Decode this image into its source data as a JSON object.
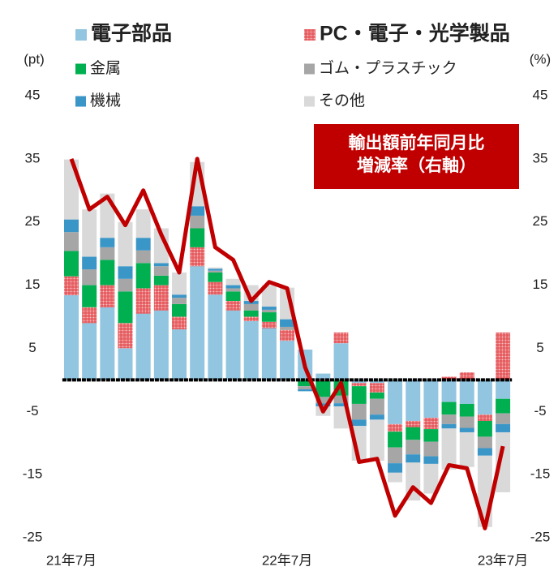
{
  "chart_data": {
    "type": "stacked_bar_line",
    "y_unit_label": "(pt)",
    "y2_unit_label": "(%)",
    "categories": [
      "21年7月",
      null,
      null,
      null,
      null,
      null,
      null,
      null,
      null,
      null,
      null,
      null,
      "22年7月",
      null,
      null,
      null,
      null,
      null,
      null,
      null,
      null,
      null,
      null,
      null,
      "23年7月"
    ],
    "ylim": [
      -25,
      45
    ],
    "yticks": [
      45,
      35,
      25,
      15,
      5,
      -5,
      -15,
      -25
    ],
    "y2lim": [
      -25,
      45
    ],
    "y2ticks": [
      45,
      35,
      25,
      15,
      5,
      -5,
      -15,
      -25
    ],
    "negative_tick_color": "#cc0000",
    "series": [
      {
        "name": "電子部品",
        "color": "#92c5e0",
        "values": [
          13.4,
          9,
          11.5,
          5,
          10.5,
          11,
          8,
          18,
          13.5,
          11,
          9.3,
          8.2,
          6.2,
          4.8,
          1,
          5.8,
          -0.5,
          -0.5,
          -7,
          -6.5,
          -6,
          -3.5,
          -3.8,
          -5.5,
          -3
        ]
      },
      {
        "name": "PC・電子・光学製品",
        "color": "#e03a3e",
        "pattern": "crosshatch",
        "values": [
          3,
          2.5,
          3.5,
          4,
          4,
          4,
          2,
          3,
          2,
          1.5,
          0.7,
          1,
          1.7,
          0,
          -0.2,
          1.7,
          -0.5,
          -1.5,
          -1.2,
          -1,
          -1.8,
          0.5,
          1.2,
          -1,
          7.5
        ]
      },
      {
        "name": "金属",
        "color": "#00b050",
        "values": [
          4,
          3.5,
          4,
          5,
          4,
          1.5,
          2,
          3,
          1.5,
          1.5,
          1,
          1.5,
          0,
          -1,
          -2.5,
          -2.5,
          -2.8,
          -1,
          -2.5,
          -2,
          -2,
          -2,
          -2,
          -2.5,
          -2.3
        ]
      },
      {
        "name": "ゴム・プラスチック",
        "color": "#a6a6a6",
        "values": [
          3,
          2.5,
          2,
          2,
          2,
          1.5,
          1,
          2,
          0.3,
          0.5,
          1,
          0.4,
          0.5,
          -0.5,
          -1,
          -1.2,
          -2.5,
          -2.5,
          -2.5,
          -2.3,
          -2.3,
          -1.5,
          -1.8,
          -1.8,
          -1.7
        ]
      },
      {
        "name": "機械",
        "color": "#3b96c8",
        "values": [
          2,
          2,
          1.5,
          2,
          2,
          0.5,
          0.5,
          1.5,
          0.3,
          0.5,
          0.5,
          0.5,
          1.2,
          -0.3,
          -0.5,
          -0.5,
          -1,
          -0.8,
          -1.5,
          -1.3,
          -1.2,
          -0.7,
          -0.7,
          -1.2,
          -1.3
        ]
      },
      {
        "name": "その他",
        "color": "#d9d9d9",
        "values": [
          9.5,
          7.5,
          7,
          7,
          4.5,
          5.5,
          3.5,
          7,
          0.2,
          1,
          2.5,
          3.4,
          5,
          0,
          -1.5,
          -3.5,
          -5.5,
          -6.5,
          -1.5,
          -6,
          -4.7,
          -6.5,
          -5.5,
          -11.3,
          -9.5
        ]
      },
      {
        "name": "輸出額前年同月比増減率（右軸）",
        "type": "line",
        "axis": "y2",
        "color": "#c00000",
        "values": [
          35,
          27,
          29,
          24.5,
          30,
          23,
          17,
          35,
          21,
          19,
          12.5,
          15.5,
          14.5,
          2,
          -5,
          -0.5,
          -13,
          -12.5,
          -21.5,
          -17,
          -19.5,
          -13.5,
          -14,
          -23.5,
          -10.5
        ]
      }
    ]
  }
}
